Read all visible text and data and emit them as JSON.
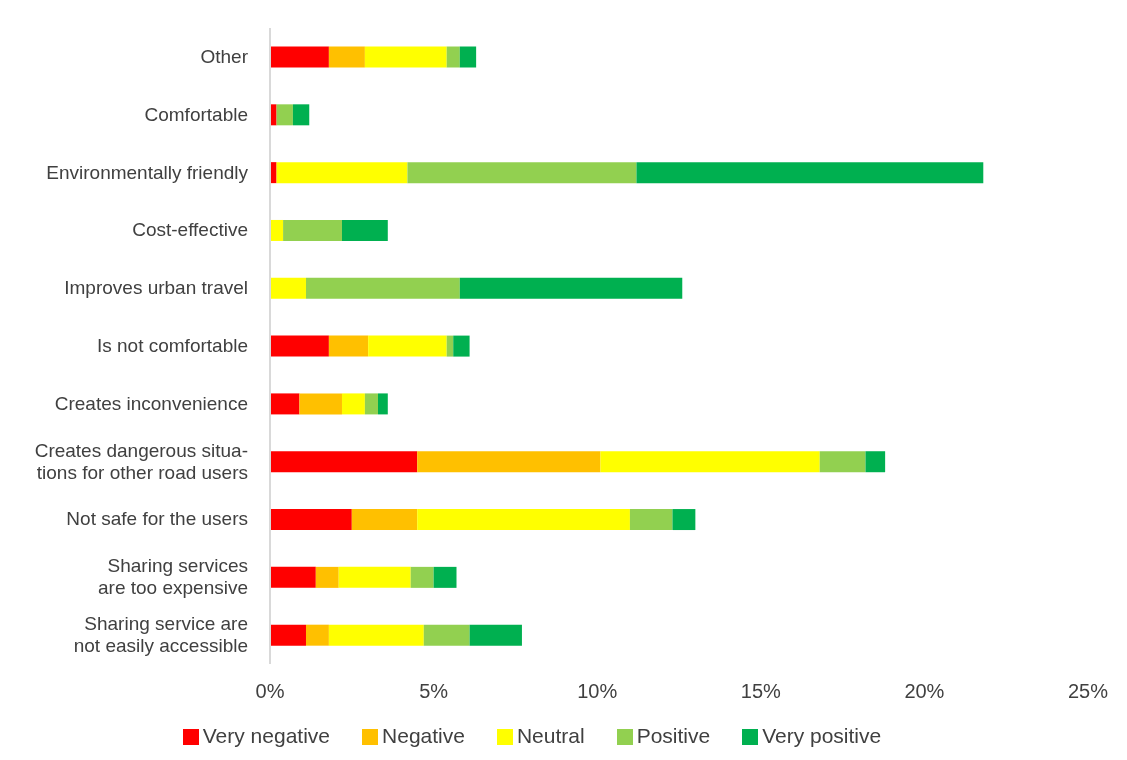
{
  "chart_data": {
    "type": "bar",
    "orientation": "horizontal",
    "stacked": true,
    "categories": [
      "Other",
      "Comfortable",
      "Environmentally friendly",
      "Cost-effective",
      "Improves urban travel",
      "Is not comfortable",
      "Creates inconvenience",
      "Creates dangerous situa-\ntions for other road users",
      "Not safe for the users",
      "Sharing services\nare too expensive",
      "Sharing service are\nnot easily accessible"
    ],
    "series": [
      {
        "name": "Very negative",
        "color": "#ff0000",
        "values": [
          1.8,
          0.2,
          0.2,
          0,
          0,
          1.8,
          0.9,
          4.5,
          2.5,
          1.4,
          1.1
        ]
      },
      {
        "name": "Negative",
        "color": "#ffc000",
        "values": [
          1.1,
          0,
          0,
          0,
          0,
          1.2,
          1.3,
          5.6,
          2.0,
          0.7,
          0.7
        ]
      },
      {
        "name": "Neutral",
        "color": "#ffff00",
        "values": [
          2.5,
          0,
          4.0,
          0.4,
          1.1,
          2.4,
          0.7,
          6.7,
          6.5,
          2.2,
          2.9
        ]
      },
      {
        "name": "Positive",
        "color": "#92d050",
        "values": [
          0.4,
          0.5,
          7.0,
          1.8,
          4.7,
          0.2,
          0.4,
          1.4,
          1.3,
          0.7,
          1.4
        ]
      },
      {
        "name": "Very positive",
        "color": "#00b050",
        "values": [
          0.5,
          0.5,
          10.6,
          1.4,
          6.8,
          0.5,
          0.3,
          0.6,
          0.7,
          0.7,
          1.6
        ]
      }
    ],
    "xlim": [
      0,
      25
    ],
    "xticks": [
      {
        "value": 0,
        "label": "0%"
      },
      {
        "value": 5,
        "label": "5%"
      },
      {
        "value": 10,
        "label": "10%"
      },
      {
        "value": 15,
        "label": "15%"
      },
      {
        "value": 20,
        "label": "20%"
      },
      {
        "value": 25,
        "label": "25%"
      }
    ],
    "grid": false,
    "legend": "bottom"
  }
}
